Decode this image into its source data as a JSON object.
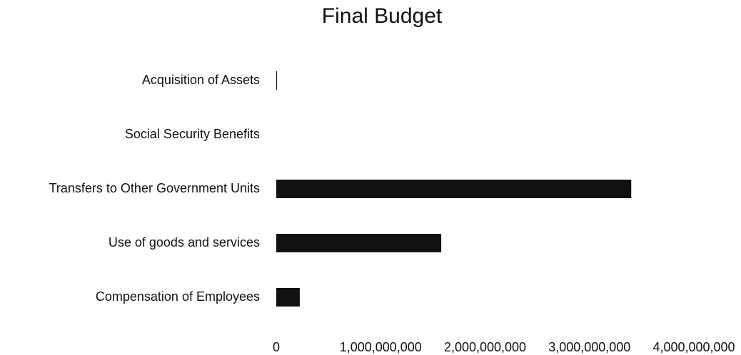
{
  "chart_data": {
    "type": "bar",
    "orientation": "horizontal",
    "title": "Final Budget",
    "categories": [
      "Acquisition of Assets",
      "Social Security Benefits",
      "Transfers to Other Government Units",
      "Use of goods and services",
      "Compensation of Employees"
    ],
    "values": [
      5000000,
      0,
      3400000000,
      1580000000,
      225000000
    ],
    "color": "#111111",
    "xlim": [
      0,
      4000000000
    ],
    "xticks": [
      0,
      {
        "value": 1000000000,
        "label": "1,000,000,000"
      },
      {
        "value": 2000000000,
        "label": "2,000,000,000"
      },
      {
        "value": 3000000000,
        "label": "3,000,000,000"
      },
      {
        "value": 4000000000,
        "label": "4,000,000,000"
      }
    ],
    "grid": false
  }
}
